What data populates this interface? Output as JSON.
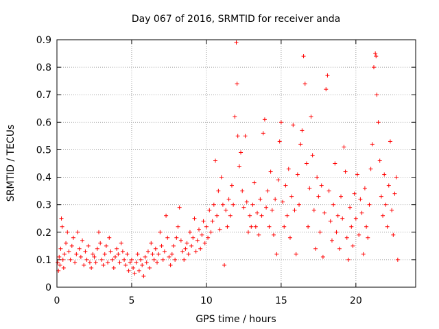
{
  "chart_data": {
    "type": "scatter",
    "title": "Day 067 of 2016, SRMTID for receiver anda",
    "xlabel": "GPS time / hours",
    "ylabel": "SRMTID / TECUs",
    "xlim": [
      0,
      24
    ],
    "ylim": [
      0,
      0.9
    ],
    "xticks": [
      0,
      5,
      10,
      15,
      20
    ],
    "yticks": [
      0,
      0.1,
      0.2,
      0.3,
      0.4,
      0.5,
      0.6,
      0.7,
      0.8,
      0.9
    ],
    "grid": true,
    "marker": "+",
    "color": "#ff0000",
    "series": [
      {
        "name": "SRMTID",
        "points": [
          [
            0.05,
            0.09
          ],
          [
            0.1,
            0.06
          ],
          [
            0.15,
            0.11
          ],
          [
            0.2,
            0.08
          ],
          [
            0.25,
            0.14
          ],
          [
            0.3,
            0.25
          ],
          [
            0.35,
            0.22
          ],
          [
            0.4,
            0.1
          ],
          [
            0.45,
            0.07
          ],
          [
            0.5,
            0.12
          ],
          [
            0.6,
            0.16
          ],
          [
            0.7,
            0.2
          ],
          [
            0.8,
            0.13
          ],
          [
            0.9,
            0.1
          ],
          [
            1.0,
            0.15
          ],
          [
            1.1,
            0.18
          ],
          [
            1.2,
            0.09
          ],
          [
            1.3,
            0.12
          ],
          [
            1.4,
            0.2
          ],
          [
            1.5,
            0.14
          ],
          [
            1.6,
            0.11
          ],
          [
            1.7,
            0.17
          ],
          [
            1.8,
            0.08
          ],
          [
            1.9,
            0.13
          ],
          [
            2.0,
            0.1
          ],
          [
            2.1,
            0.15
          ],
          [
            2.2,
            0.09
          ],
          [
            2.3,
            0.07
          ],
          [
            2.4,
            0.12
          ],
          [
            2.5,
            0.11
          ],
          [
            2.6,
            0.09
          ],
          [
            2.7,
            0.14
          ],
          [
            2.8,
            0.2
          ],
          [
            2.9,
            0.16
          ],
          [
            3.0,
            0.1
          ],
          [
            3.1,
            0.08
          ],
          [
            3.2,
            0.12
          ],
          [
            3.3,
            0.15
          ],
          [
            3.4,
            0.09
          ],
          [
            3.5,
            0.18
          ],
          [
            3.6,
            0.13
          ],
          [
            3.7,
            0.1
          ],
          [
            3.8,
            0.07
          ],
          [
            3.9,
            0.11
          ],
          [
            4.0,
            0.14
          ],
          [
            4.1,
            0.12
          ],
          [
            4.2,
            0.09
          ],
          [
            4.3,
            0.16
          ],
          [
            4.4,
            0.13
          ],
          [
            4.5,
            0.1
          ],
          [
            4.6,
            0.08
          ],
          [
            4.7,
            0.12
          ],
          [
            4.8,
            0.06
          ],
          [
            4.9,
            0.09
          ],
          [
            5.0,
            0.1
          ],
          [
            5.1,
            0.07
          ],
          [
            5.2,
            0.05
          ],
          [
            5.3,
            0.09
          ],
          [
            5.4,
            0.12
          ],
          [
            5.5,
            0.06
          ],
          [
            5.6,
            0.1
          ],
          [
            5.7,
            0.08
          ],
          [
            5.8,
            0.04
          ],
          [
            5.9,
            0.11
          ],
          [
            6.0,
            0.09
          ],
          [
            6.1,
            0.13
          ],
          [
            6.2,
            0.07
          ],
          [
            6.3,
            0.16
          ],
          [
            6.4,
            0.12
          ],
          [
            6.5,
            0.1
          ],
          [
            6.6,
            0.14
          ],
          [
            6.7,
            0.09
          ],
          [
            6.8,
            0.12
          ],
          [
            6.9,
            0.2
          ],
          [
            7.0,
            0.15
          ],
          [
            7.1,
            0.1
          ],
          [
            7.2,
            0.13
          ],
          [
            7.3,
            0.26
          ],
          [
            7.4,
            0.18
          ],
          [
            7.5,
            0.11
          ],
          [
            7.6,
            0.08
          ],
          [
            7.7,
            0.12
          ],
          [
            7.8,
            0.15
          ],
          [
            7.9,
            0.1
          ],
          [
            8.0,
            0.18
          ],
          [
            8.1,
            0.22
          ],
          [
            8.2,
            0.29
          ],
          [
            8.3,
            0.17
          ],
          [
            8.4,
            0.13
          ],
          [
            8.5,
            0.1
          ],
          [
            8.6,
            0.14
          ],
          [
            8.7,
            0.16
          ],
          [
            8.8,
            0.12
          ],
          [
            8.9,
            0.2
          ],
          [
            9.0,
            0.15
          ],
          [
            9.1,
            0.18
          ],
          [
            9.2,
            0.25
          ],
          [
            9.3,
            0.13
          ],
          [
            9.4,
            0.17
          ],
          [
            9.5,
            0.21
          ],
          [
            9.6,
            0.14
          ],
          [
            9.7,
            0.19
          ],
          [
            9.8,
            0.24
          ],
          [
            9.9,
            0.16
          ],
          [
            10.0,
            0.22
          ],
          [
            10.1,
            0.18
          ],
          [
            10.2,
            0.28
          ],
          [
            10.3,
            0.2
          ],
          [
            10.4,
            0.24
          ],
          [
            10.5,
            0.3
          ],
          [
            10.6,
            0.46
          ],
          [
            10.7,
            0.26
          ],
          [
            10.8,
            0.35
          ],
          [
            10.9,
            0.21
          ],
          [
            11.0,
            0.4
          ],
          [
            11.1,
            0.3
          ],
          [
            11.2,
            0.08
          ],
          [
            11.3,
            0.28
          ],
          [
            11.4,
            0.22
          ],
          [
            11.5,
            0.32
          ],
          [
            11.6,
            0.26
          ],
          [
            11.7,
            0.37
          ],
          [
            11.8,
            0.3
          ],
          [
            11.9,
            0.62
          ],
          [
            12.0,
            0.89
          ],
          [
            12.05,
            0.74
          ],
          [
            12.1,
            0.55
          ],
          [
            12.2,
            0.44
          ],
          [
            12.3,
            0.49
          ],
          [
            12.4,
            0.35
          ],
          [
            12.5,
            0.29
          ],
          [
            12.6,
            0.55
          ],
          [
            12.7,
            0.31
          ],
          [
            12.8,
            0.2
          ],
          [
            12.9,
            0.26
          ],
          [
            13.0,
            0.22
          ],
          [
            13.1,
            0.3
          ],
          [
            13.2,
            0.38
          ],
          [
            13.3,
            0.22
          ],
          [
            13.4,
            0.27
          ],
          [
            13.5,
            0.19
          ],
          [
            13.6,
            0.32
          ],
          [
            13.7,
            0.26
          ],
          [
            13.8,
            0.56
          ],
          [
            13.9,
            0.61
          ],
          [
            14.0,
            0.29
          ],
          [
            14.1,
            0.35
          ],
          [
            14.2,
            0.22
          ],
          [
            14.3,
            0.42
          ],
          [
            14.4,
            0.28
          ],
          [
            14.5,
            0.19
          ],
          [
            14.6,
            0.32
          ],
          [
            14.7,
            0.12
          ],
          [
            14.8,
            0.39
          ],
          [
            14.9,
            0.53
          ],
          [
            15.0,
            0.6
          ],
          [
            15.1,
            0.31
          ],
          [
            15.2,
            0.22
          ],
          [
            15.3,
            0.37
          ],
          [
            15.4,
            0.26
          ],
          [
            15.5,
            0.43
          ],
          [
            15.6,
            0.18
          ],
          [
            15.7,
            0.33
          ],
          [
            15.8,
            0.59
          ],
          [
            15.9,
            0.28
          ],
          [
            16.0,
            0.12
          ],
          [
            16.1,
            0.41
          ],
          [
            16.2,
            0.3
          ],
          [
            16.3,
            0.52
          ],
          [
            16.4,
            0.57
          ],
          [
            16.5,
            0.84
          ],
          [
            16.6,
            0.74
          ],
          [
            16.7,
            0.45
          ],
          [
            16.8,
            0.22
          ],
          [
            16.9,
            0.36
          ],
          [
            17.0,
            0.62
          ],
          [
            17.1,
            0.48
          ],
          [
            17.2,
            0.28
          ],
          [
            17.3,
            0.14
          ],
          [
            17.4,
            0.4
          ],
          [
            17.5,
            0.33
          ],
          [
            17.6,
            0.2
          ],
          [
            17.7,
            0.37
          ],
          [
            17.8,
            0.11
          ],
          [
            17.9,
            0.27
          ],
          [
            18.0,
            0.72
          ],
          [
            18.1,
            0.77
          ],
          [
            18.2,
            0.35
          ],
          [
            18.3,
            0.24
          ],
          [
            18.4,
            0.17
          ],
          [
            18.5,
            0.3
          ],
          [
            18.6,
            0.45
          ],
          [
            18.7,
            0.2
          ],
          [
            18.8,
            0.26
          ],
          [
            18.9,
            0.14
          ],
          [
            19.0,
            0.33
          ],
          [
            19.1,
            0.25
          ],
          [
            19.2,
            0.51
          ],
          [
            19.3,
            0.42
          ],
          [
            19.4,
            0.18
          ],
          [
            19.5,
            0.1
          ],
          [
            19.6,
            0.29
          ],
          [
            19.7,
            0.22
          ],
          [
            19.8,
            0.15
          ],
          [
            19.9,
            0.34
          ],
          [
            20.0,
            0.25
          ],
          [
            20.1,
            0.41
          ],
          [
            20.2,
            0.19
          ],
          [
            20.3,
            0.32
          ],
          [
            20.4,
            0.27
          ],
          [
            20.5,
            0.12
          ],
          [
            20.6,
            0.36
          ],
          [
            20.7,
            0.22
          ],
          [
            20.8,
            0.18
          ],
          [
            20.9,
            0.3
          ],
          [
            21.0,
            0.43
          ],
          [
            21.1,
            0.52
          ],
          [
            21.2,
            0.8
          ],
          [
            21.3,
            0.85
          ],
          [
            21.35,
            0.84
          ],
          [
            21.4,
            0.7
          ],
          [
            21.5,
            0.6
          ],
          [
            21.6,
            0.46
          ],
          [
            21.7,
            0.33
          ],
          [
            21.8,
            0.26
          ],
          [
            21.9,
            0.41
          ],
          [
            22.0,
            0.3
          ],
          [
            22.1,
            0.22
          ],
          [
            22.2,
            0.37
          ],
          [
            22.3,
            0.53
          ],
          [
            22.4,
            0.28
          ],
          [
            22.5,
            0.19
          ],
          [
            22.6,
            0.34
          ],
          [
            22.7,
            0.4
          ],
          [
            22.8,
            0.1
          ]
        ]
      }
    ]
  }
}
